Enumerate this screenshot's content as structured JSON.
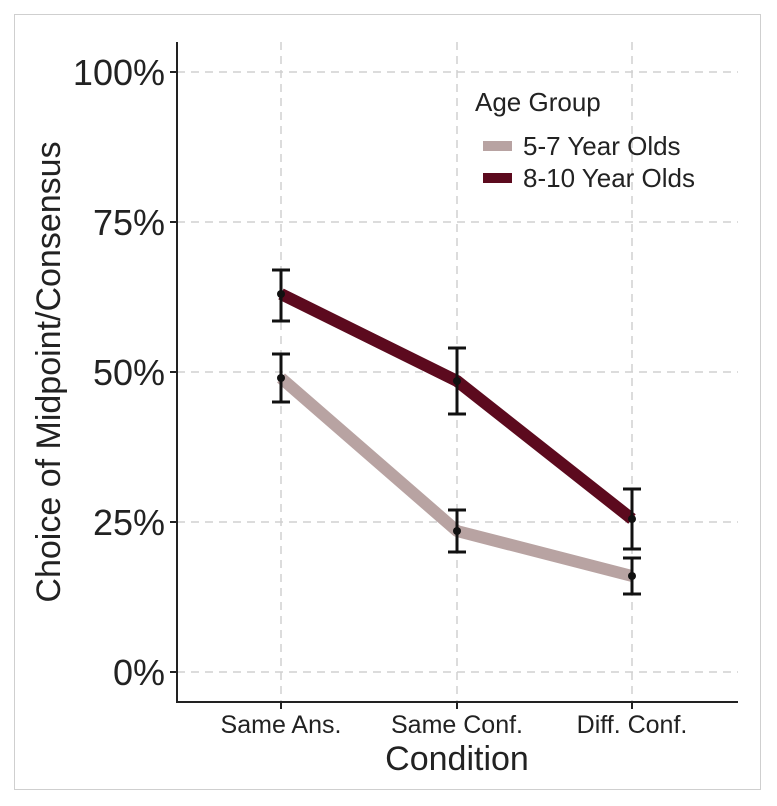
{
  "chart_data": {
    "type": "line",
    "title": "",
    "xlabel": "Condition",
    "ylabel": "Choice of Midpoint/Consensus",
    "categories": [
      "Same Ans.",
      "Same Conf.",
      "Diff. Conf."
    ],
    "ylim": [
      0,
      100
    ],
    "yticks": [
      0,
      25,
      50,
      75,
      100
    ],
    "ytick_labels": [
      "0%",
      "25%",
      "50%",
      "75%",
      "100%"
    ],
    "grid": true,
    "legend": {
      "title": "Age Group",
      "position": "top-right"
    },
    "series": [
      {
        "name": "5-7 Year Olds",
        "color": "#b8a3a2",
        "values": [
          49,
          23.5,
          16
        ],
        "err_low": [
          45,
          20,
          13
        ],
        "err_high": [
          53,
          27,
          19
        ]
      },
      {
        "name": "8-10 Year Olds",
        "color": "#5c0a1e",
        "values": [
          63,
          48.5,
          25.5
        ],
        "err_low": [
          58.5,
          43,
          20.5
        ],
        "err_high": [
          67,
          54,
          30.5
        ]
      }
    ]
  }
}
